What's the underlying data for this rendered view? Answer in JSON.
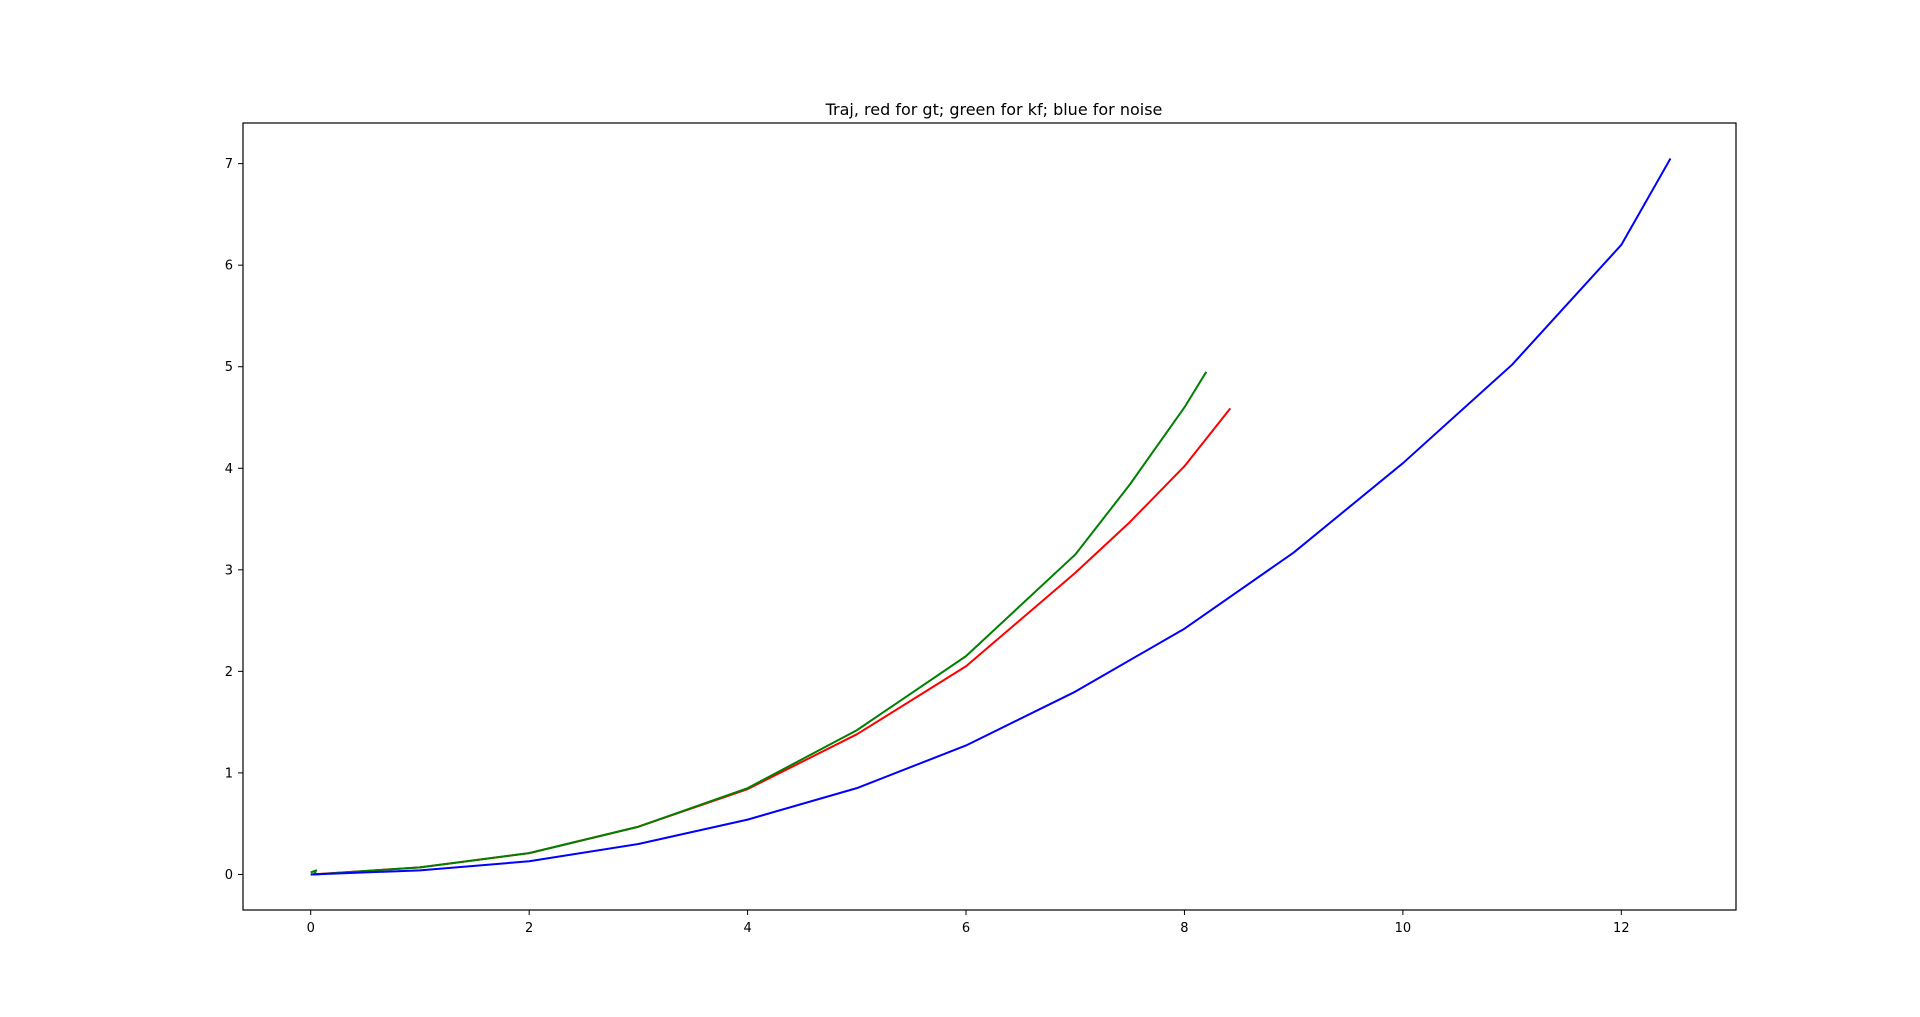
{
  "chart_data": {
    "type": "line",
    "title": "Traj, red for gt; green for kf; blue for noise",
    "xlabel": "",
    "ylabel": "",
    "xlim": [
      -0.62,
      13.05
    ],
    "ylim": [
      -0.35,
      7.4
    ],
    "xticks": [
      0,
      2,
      4,
      6,
      8,
      10,
      12
    ],
    "yticks": [
      0,
      1,
      2,
      3,
      4,
      5,
      6,
      7
    ],
    "grid": false,
    "legend": "none",
    "series": [
      {
        "color": "#ff0000",
        "x": [
          0,
          1,
          2,
          3,
          4,
          5,
          6,
          7,
          7.5,
          8,
          8.42
        ],
        "y": [
          0,
          0.07,
          0.21,
          0.47,
          0.84,
          1.38,
          2.05,
          2.97,
          3.47,
          4.02,
          4.59
        ]
      },
      {
        "color": "#008000",
        "x": [
          0,
          0.05,
          0.03,
          1,
          2,
          3,
          4,
          5,
          6,
          7,
          7.5,
          8,
          8.2
        ],
        "y": [
          0.02,
          0.04,
          0.0,
          0.07,
          0.21,
          0.47,
          0.85,
          1.42,
          2.15,
          3.15,
          3.84,
          4.6,
          4.95
        ]
      },
      {
        "color": "#0000ff",
        "x": [
          0,
          1,
          2,
          3,
          4,
          5,
          6,
          7,
          8,
          9,
          10,
          11,
          12,
          12.45
        ],
        "y": [
          0,
          0.04,
          0.13,
          0.3,
          0.54,
          0.85,
          1.27,
          1.8,
          2.42,
          3.17,
          4.05,
          5.02,
          6.2,
          7.05
        ]
      }
    ]
  }
}
